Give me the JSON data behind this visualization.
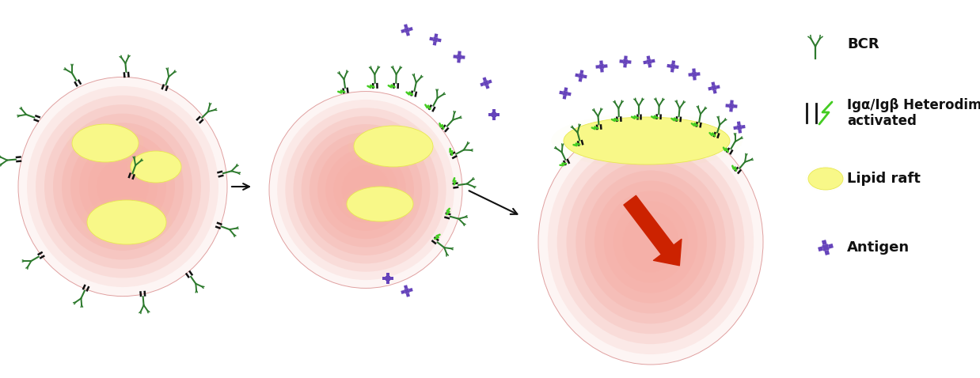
{
  "bg_color": "#ffffff",
  "cell_color_inner": "#f5b8b0",
  "cell_color_outer": "#fad8d4",
  "cell_edge_color": "none",
  "lipid_raft_color_inner": "#f8f8a0",
  "lipid_raft_color_outer": "#f0f0c0",
  "lipid_raft_edge": "none",
  "bcr_color": "#2d7a2d",
  "hetero_bar_color": "#111111",
  "hetero_bolt_color": "#44cc22",
  "antigen_color": "#6644bb",
  "arrow_color": "#cc2200",
  "black_arrow_color": "#111111",
  "legend_bcr_text": "BCR",
  "legend_hetero_text": "Igα/Igβ Heterodimer\nactivated",
  "legend_lipid_text": "Lipid raft",
  "legend_antigen_text": "Antigen",
  "text_color": "#111111",
  "bold_fontsize": 13
}
